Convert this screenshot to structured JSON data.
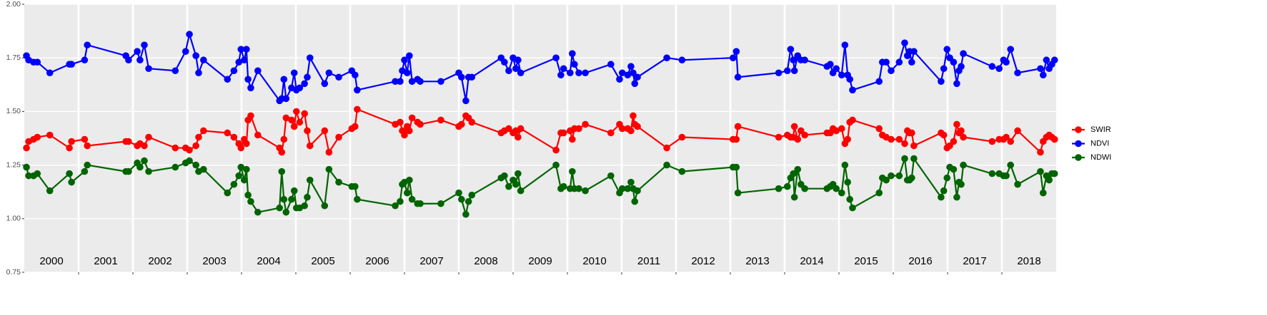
{
  "chart_data": {
    "type": "line",
    "x": [
      2000.04,
      2000.08,
      2000.17,
      2000.24,
      2000.47,
      2000.83,
      2000.87,
      2001.11,
      2001.16,
      2001.87,
      2001.92,
      2002.08,
      2002.13,
      2002.21,
      2002.29,
      2002.78,
      2002.97,
      2003.04,
      2003.16,
      2003.21,
      2003.3,
      2003.74,
      2003.86,
      2003.95,
      2003.99,
      2004.05,
      2004.09,
      2004.12,
      2004.17,
      2004.3,
      2004.7,
      2004.74,
      2004.78,
      2004.82,
      2004.92,
      2004.97,
      2005.01,
      2005.07,
      2005.16,
      2005.21,
      2005.26,
      2005.53,
      2005.61,
      2005.79,
      2006.03,
      2006.09,
      2006.13,
      2006.83,
      2006.92,
      2006.96,
      2007.0,
      2007.05,
      2007.09,
      2007.14,
      2007.24,
      2007.29,
      2007.67,
      2008.0,
      2008.05,
      2008.13,
      2008.18,
      2008.24,
      2008.78,
      2008.84,
      2008.92,
      2009.0,
      2009.05,
      2009.09,
      2009.14,
      2009.79,
      2009.88,
      2009.93,
      2010.05,
      2010.09,
      2010.13,
      2010.21,
      2010.33,
      2010.8,
      2010.96,
      2011.01,
      2011.11,
      2011.17,
      2011.21,
      2011.24,
      2011.29,
      2011.83,
      2012.11,
      2013.05,
      2013.11,
      2013.14,
      2013.89,
      2014.05,
      2014.11,
      2014.16,
      2014.18,
      2014.24,
      2014.3,
      2014.37,
      2014.78,
      2014.84,
      2014.89,
      2014.95,
      2015.05,
      2015.11,
      2015.16,
      2015.2,
      2015.25,
      2015.74,
      2015.8,
      2015.87,
      2015.96,
      2016.11,
      2016.21,
      2016.26,
      2016.3,
      2016.34,
      2016.38,
      2016.88,
      2016.93,
      2016.99,
      2017.04,
      2017.11,
      2017.17,
      2017.21,
      2017.25,
      2017.29,
      2017.82,
      2017.95,
      2018.03,
      2018.08,
      2018.16,
      2018.29,
      2018.71,
      2018.76,
      2018.82,
      2018.87,
      2018.92,
      2018.97
    ],
    "series": [
      {
        "name": "SWIR",
        "color": "#ff0000",
        "values": [
          1.33,
          1.36,
          1.37,
          1.38,
          1.39,
          1.33,
          1.36,
          1.37,
          1.34,
          1.36,
          1.36,
          1.34,
          1.35,
          1.34,
          1.38,
          1.33,
          1.33,
          1.32,
          1.34,
          1.38,
          1.41,
          1.4,
          1.38,
          1.35,
          1.33,
          1.37,
          1.35,
          1.46,
          1.48,
          1.39,
          1.33,
          1.31,
          1.37,
          1.47,
          1.46,
          1.43,
          1.5,
          1.45,
          1.49,
          1.41,
          1.34,
          1.41,
          1.31,
          1.38,
          1.42,
          1.43,
          1.51,
          1.44,
          1.45,
          1.41,
          1.39,
          1.43,
          1.41,
          1.47,
          1.45,
          1.44,
          1.46,
          1.43,
          1.44,
          1.48,
          1.47,
          1.45,
          1.4,
          1.41,
          1.42,
          1.4,
          1.41,
          1.38,
          1.42,
          1.32,
          1.4,
          1.4,
          1.41,
          1.37,
          1.42,
          1.42,
          1.44,
          1.4,
          1.44,
          1.42,
          1.42,
          1.41,
          1.48,
          1.44,
          1.43,
          1.33,
          1.38,
          1.37,
          1.37,
          1.43,
          1.38,
          1.39,
          1.38,
          1.38,
          1.43,
          1.37,
          1.41,
          1.39,
          1.4,
          1.4,
          1.42,
          1.41,
          1.42,
          1.35,
          1.37,
          1.45,
          1.46,
          1.42,
          1.39,
          1.38,
          1.37,
          1.37,
          1.35,
          1.41,
          1.4,
          1.4,
          1.34,
          1.4,
          1.39,
          1.33,
          1.34,
          1.36,
          1.44,
          1.4,
          1.41,
          1.38,
          1.36,
          1.37,
          1.37,
          1.38,
          1.36,
          1.41,
          1.31,
          1.36,
          1.38,
          1.39,
          1.38,
          1.37
        ]
      },
      {
        "name": "NDVI",
        "color": "#0000ff",
        "values": [
          1.76,
          1.74,
          1.73,
          1.73,
          1.68,
          1.72,
          1.72,
          1.74,
          1.81,
          1.76,
          1.74,
          1.78,
          1.74,
          1.81,
          1.7,
          1.69,
          1.78,
          1.86,
          1.76,
          1.68,
          1.74,
          1.65,
          1.69,
          1.73,
          1.79,
          1.74,
          1.79,
          1.65,
          1.61,
          1.69,
          1.55,
          1.56,
          1.65,
          1.56,
          1.61,
          1.68,
          1.6,
          1.61,
          1.63,
          1.66,
          1.75,
          1.63,
          1.68,
          1.66,
          1.69,
          1.67,
          1.6,
          1.64,
          1.64,
          1.69,
          1.74,
          1.68,
          1.76,
          1.64,
          1.65,
          1.64,
          1.64,
          1.68,
          1.66,
          1.55,
          1.66,
          1.66,
          1.75,
          1.73,
          1.69,
          1.75,
          1.7,
          1.74,
          1.68,
          1.75,
          1.67,
          1.7,
          1.68,
          1.77,
          1.72,
          1.68,
          1.68,
          1.72,
          1.65,
          1.68,
          1.67,
          1.71,
          1.68,
          1.63,
          1.66,
          1.75,
          1.74,
          1.75,
          1.78,
          1.66,
          1.68,
          1.69,
          1.79,
          1.74,
          1.69,
          1.76,
          1.74,
          1.74,
          1.71,
          1.72,
          1.68,
          1.7,
          1.67,
          1.81,
          1.67,
          1.65,
          1.6,
          1.64,
          1.73,
          1.73,
          1.69,
          1.73,
          1.82,
          1.76,
          1.78,
          1.73,
          1.78,
          1.64,
          1.7,
          1.79,
          1.75,
          1.73,
          1.63,
          1.69,
          1.71,
          1.77,
          1.71,
          1.7,
          1.74,
          1.73,
          1.79,
          1.68,
          1.7,
          1.67,
          1.74,
          1.7,
          1.72,
          1.74
        ]
      },
      {
        "name": "NDWI",
        "color": "#006400",
        "values": [
          1.24,
          1.2,
          1.2,
          1.21,
          1.13,
          1.21,
          1.17,
          1.22,
          1.25,
          1.22,
          1.22,
          1.26,
          1.24,
          1.27,
          1.22,
          1.24,
          1.26,
          1.27,
          1.25,
          1.22,
          1.23,
          1.12,
          1.16,
          1.2,
          1.24,
          1.18,
          1.23,
          1.11,
          1.08,
          1.03,
          1.05,
          1.22,
          1.09,
          1.03,
          1.09,
          1.13,
          1.05,
          1.05,
          1.06,
          1.1,
          1.18,
          1.06,
          1.23,
          1.17,
          1.15,
          1.15,
          1.09,
          1.06,
          1.08,
          1.16,
          1.17,
          1.12,
          1.18,
          1.09,
          1.07,
          1.07,
          1.07,
          1.12,
          1.09,
          1.02,
          1.08,
          1.11,
          1.19,
          1.2,
          1.15,
          1.18,
          1.16,
          1.21,
          1.13,
          1.25,
          1.14,
          1.15,
          1.14,
          1.22,
          1.14,
          1.14,
          1.13,
          1.2,
          1.12,
          1.14,
          1.14,
          1.17,
          1.14,
          1.08,
          1.13,
          1.25,
          1.22,
          1.24,
          1.24,
          1.12,
          1.14,
          1.15,
          1.19,
          1.21,
          1.1,
          1.23,
          1.16,
          1.14,
          1.14,
          1.15,
          1.16,
          1.14,
          1.12,
          1.25,
          1.17,
          1.09,
          1.05,
          1.12,
          1.19,
          1.18,
          1.2,
          1.2,
          1.28,
          1.18,
          1.18,
          1.19,
          1.28,
          1.1,
          1.13,
          1.19,
          1.24,
          1.23,
          1.1,
          1.17,
          1.16,
          1.25,
          1.21,
          1.21,
          1.2,
          1.2,
          1.25,
          1.16,
          1.22,
          1.12,
          1.2,
          1.18,
          1.21,
          1.21
        ]
      }
    ],
    "annotations": [
      {
        "text": "2000",
        "x": 2000.5
      },
      {
        "text": "2001",
        "x": 2001.5
      },
      {
        "text": "2002",
        "x": 2002.5
      },
      {
        "text": "2003",
        "x": 2003.5
      },
      {
        "text": "2004",
        "x": 2004.5
      },
      {
        "text": "2005",
        "x": 2005.5
      },
      {
        "text": "2006",
        "x": 2006.5
      },
      {
        "text": "2007",
        "x": 2007.5
      },
      {
        "text": "2008",
        "x": 2008.5
      },
      {
        "text": "2009",
        "x": 2009.5
      },
      {
        "text": "2010",
        "x": 2010.5
      },
      {
        "text": "2011",
        "x": 2011.5
      },
      {
        "text": "2012",
        "x": 2012.5
      },
      {
        "text": "2013",
        "x": 2013.5
      },
      {
        "text": "2014",
        "x": 2014.5
      },
      {
        "text": "2015",
        "x": 2015.5
      },
      {
        "text": "2016",
        "x": 2016.5
      },
      {
        "text": "2017",
        "x": 2017.5
      },
      {
        "text": "2018",
        "x": 2018.5
      }
    ],
    "xlim": [
      2000,
      2019
    ],
    "xticks": [
      2001,
      2002,
      2003,
      2004,
      2005,
      2006,
      2007,
      2008,
      2009,
      2010,
      2011,
      2012,
      2013,
      2014,
      2015,
      2016,
      2017,
      2018
    ],
    "ylim": [
      0.75,
      2.0
    ],
    "yticks": [
      0.75,
      {
        "value": 1,
        "label": "1.00"
      },
      1.25,
      {
        "value": 1.5,
        "label": "1.50"
      },
      1.75,
      {
        "value": 2,
        "label": "2.00"
      }
    ],
    "grid": true,
    "legend": "right"
  }
}
